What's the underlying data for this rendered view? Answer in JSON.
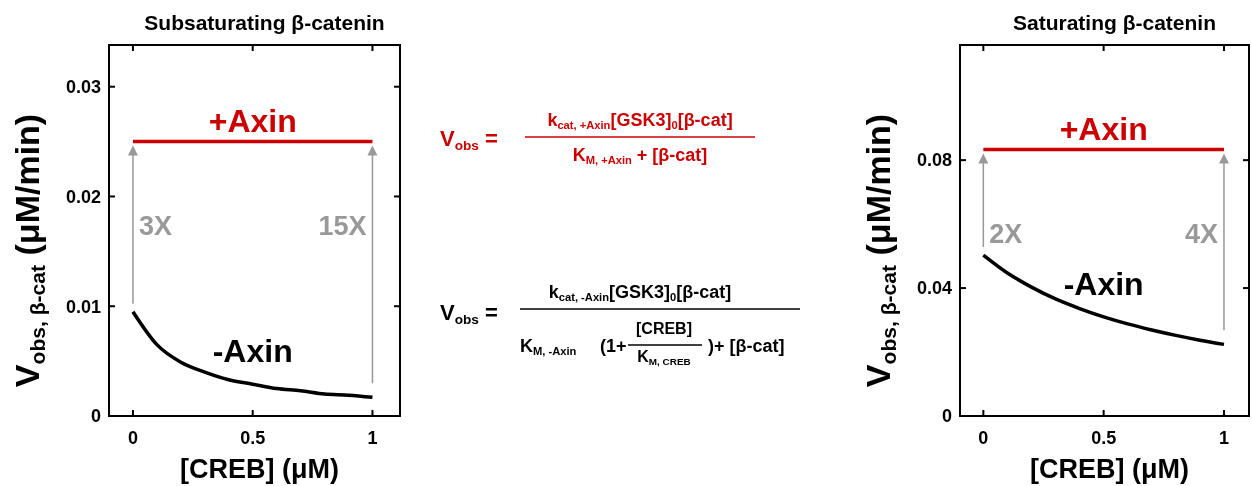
{
  "chart_data": [
    {
      "type": "line",
      "title": "Subsaturating β-catenin",
      "xlabel": "[CREB] (μM)",
      "ylabel": "V$_{obs, β-cat}$ (μM/min)",
      "x": [
        0,
        0.1,
        0.2,
        0.3,
        0.4,
        0.5,
        0.6,
        0.7,
        0.8,
        0.9,
        1
      ],
      "xlim": [
        -0.1,
        1.115
      ],
      "xticks": [
        0,
        0.5,
        1
      ],
      "ylim": [
        0,
        0.0338
      ],
      "yticks": [
        0,
        0.01,
        0.02,
        0.03
      ],
      "grid": false,
      "series": [
        {
          "name": "+Axin",
          "color": "#cc0000",
          "values": [
            0.025,
            0.025,
            0.025,
            0.025,
            0.025,
            0.025,
            0.025,
            0.025,
            0.025,
            0.025,
            0.025
          ]
        },
        {
          "name": "-Axin",
          "color": "#000000",
          "values": [
            0.0095,
            0.0065,
            0.0049,
            0.004,
            0.0033,
            0.0029,
            0.0025,
            0.0023,
            0.002,
            0.0019,
            0.0017
          ]
        }
      ],
      "annotations": [
        "3X",
        "15X"
      ]
    },
    {
      "type": "other",
      "annotations": [
        "V$_{obs}$ =",
        "k$_{cat, +Axin}$[GSK3]$_{0}$[β-cat]",
        "K$_{M, +Axin}$ + [β-cat]",
        "V$_{obs}$ =",
        "k$_{cat, -Axin}$[GSK3]$_{0}$[β-cat]",
        "K$_{M, -Axin}$",
        "(1+",
        "[CREB]",
        "K$_{M, CREB}$",
        ")+ [β-cat]"
      ]
    },
    {
      "type": "line",
      "title": "Saturating β-catenin",
      "xlabel": "[CREB] (μM)",
      "ylabel": "V$_{obs, β-cat}$ (μM/min)",
      "x": [
        0,
        0.1,
        0.2,
        0.3,
        0.4,
        0.5,
        0.6,
        0.7,
        0.8,
        0.9,
        1
      ],
      "xlim": [
        -0.097,
        1.104
      ],
      "xticks": [
        0,
        0.5,
        1
      ],
      "ylim": [
        0,
        0.116
      ],
      "yticks": [
        0,
        0.04,
        0.08
      ],
      "grid": false,
      "series": [
        {
          "name": "+Axin",
          "color": "#cc0000",
          "values": [
            0.0833,
            0.0833,
            0.0833,
            0.0833,
            0.0833,
            0.0833,
            0.0833,
            0.0833,
            0.0833,
            0.0833,
            0.0833
          ]
        },
        {
          "name": "-Axin",
          "color": "#000000",
          "values": [
            0.0503,
            0.0447,
            0.0403,
            0.0366,
            0.0336,
            0.031,
            0.0288,
            0.0269,
            0.0252,
            0.0237,
            0.0224
          ]
        }
      ],
      "annotations": [
        "2X",
        "4X"
      ]
    }
  ]
}
